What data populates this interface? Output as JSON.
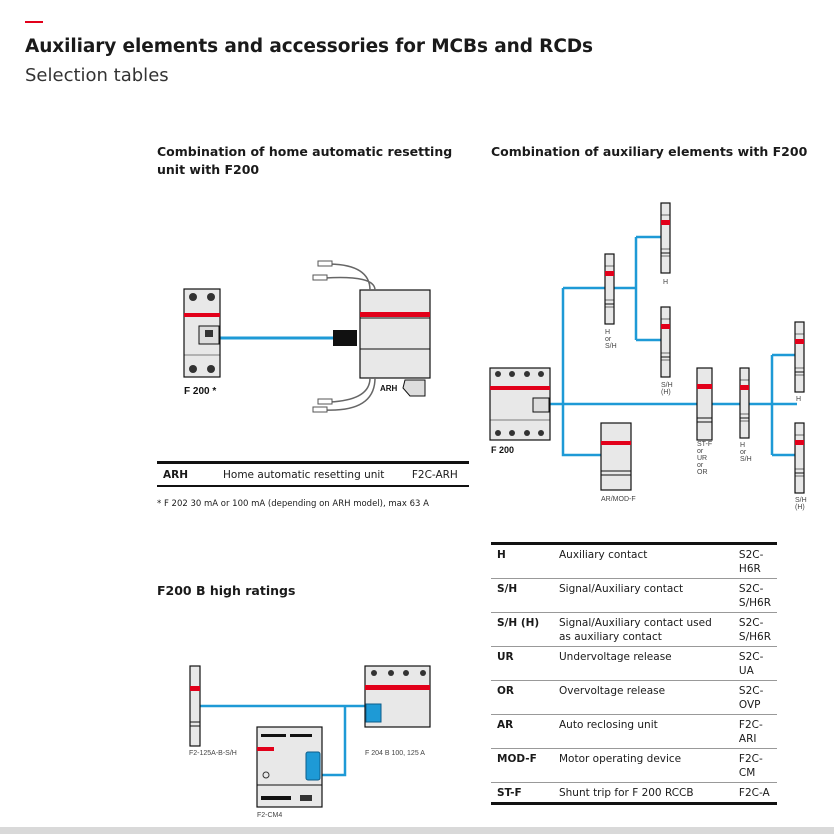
{
  "header": {
    "title": "Auxiliary elements and accessories for MCBs and RCDs",
    "subtitle": "Selection tables"
  },
  "colors": {
    "accent": "#e2001a",
    "wire": "#1e9ad6",
    "device": "#e8e8e8"
  },
  "home_section": {
    "heading": "Combination of home automatic resetting unit with F200",
    "device_label": "F 200 *",
    "unit_label": "ARH",
    "table": [
      {
        "code": "ARH",
        "description": "Home automatic resetting unit",
        "article": "F2C-ARH"
      }
    ],
    "footnote": "* F 202 30 mA or 100 mA (depending on ARH model), max 63 A"
  },
  "aux_section": {
    "heading": "Combination of auxiliary elements with F200",
    "labels": {
      "f200": "F 200",
      "h_top": "H",
      "h_or_sh": [
        "H",
        "or",
        "S/H"
      ],
      "sh_h_upper": [
        "S/H",
        "(H)"
      ],
      "ar_mod": "AR/MOD-F",
      "st_ur_or": [
        "ST-F",
        "or",
        "UR",
        "or",
        "OR"
      ],
      "h_or_sh_2": [
        "H",
        "or",
        "S/H"
      ],
      "h_right": "H",
      "sh_h_right": [
        "S/H",
        "(H)"
      ]
    },
    "table": [
      {
        "code": "H",
        "description": "Auxiliary contact",
        "article": "S2C-H6R"
      },
      {
        "code": "S/H",
        "description": "Signal/Auxiliary contact",
        "article": "S2C-S/H6R"
      },
      {
        "code": "S/H (H)",
        "description": "Signal/Auxiliary contact used as auxiliary contact",
        "article": "S2C-S/H6R"
      },
      {
        "code": "UR",
        "description": "Undervoltage release",
        "article": "S2C-UA"
      },
      {
        "code": "OR",
        "description": "Overvoltage release",
        "article": "S2C-OVP"
      },
      {
        "code": "AR",
        "description": "Auto reclosing unit",
        "article": "F2C-ARI"
      },
      {
        "code": "MOD-F",
        "description": "Motor operating device",
        "article": "F2C-CM"
      },
      {
        "code": "ST-F",
        "description": "Shunt trip for F 200 RCCB",
        "article": "F2C-A"
      }
    ]
  },
  "high_section": {
    "heading": "F200 B high ratings",
    "labels": {
      "aux": "F2-125A-B-S/H",
      "rcd": "F 204 B 100, 125 A",
      "motor": "F2-CM4"
    }
  }
}
